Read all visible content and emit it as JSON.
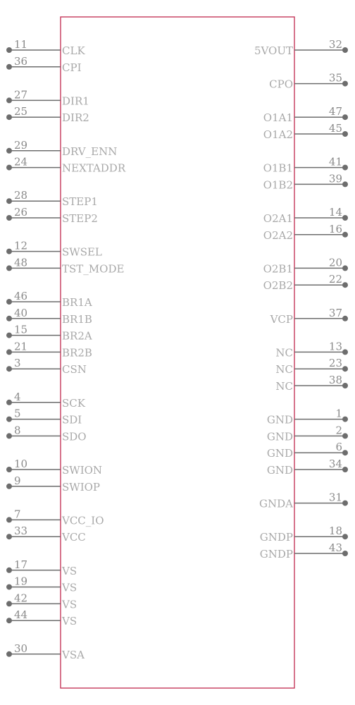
{
  "component": {
    "left_pins": [
      {
        "num": "11",
        "name": "CLK"
      },
      {
        "num": "36",
        "name": "CPI"
      },
      null,
      {
        "num": "27",
        "name": "DIR1"
      },
      {
        "num": "25",
        "name": "DIR2"
      },
      null,
      {
        "num": "29",
        "name": "DRV_ENN"
      },
      {
        "num": "24",
        "name": "NEXTADDR"
      },
      null,
      {
        "num": "28",
        "name": "STEP1"
      },
      {
        "num": "26",
        "name": "STEP2"
      },
      null,
      {
        "num": "12",
        "name": "SWSEL"
      },
      {
        "num": "48",
        "name": "TST_MODE"
      },
      null,
      {
        "num": "46",
        "name": "BR1A"
      },
      {
        "num": "40",
        "name": "BR1B"
      },
      {
        "num": "15",
        "name": "BR2A"
      },
      {
        "num": "21",
        "name": "BR2B"
      },
      {
        "num": "3",
        "name": "CSN"
      },
      null,
      {
        "num": "4",
        "name": "SCK"
      },
      {
        "num": "5",
        "name": "SDI"
      },
      {
        "num": "8",
        "name": "SDO"
      },
      null,
      {
        "num": "10",
        "name": "SWION"
      },
      {
        "num": "9",
        "name": "SWIOP"
      },
      null,
      {
        "num": "7",
        "name": "VCC_IO"
      },
      {
        "num": "33",
        "name": "VCC"
      },
      null,
      {
        "num": "17",
        "name": "VS"
      },
      {
        "num": "19",
        "name": "VS"
      },
      {
        "num": "42",
        "name": "VS"
      },
      {
        "num": "44",
        "name": "VS"
      },
      null,
      {
        "num": "30",
        "name": "VSA"
      }
    ],
    "right_pins": [
      {
        "num": "32",
        "name": "5VOUT"
      },
      null,
      {
        "num": "35",
        "name": "CPO"
      },
      null,
      {
        "num": "47",
        "name": "O1A1"
      },
      {
        "num": "45",
        "name": "O1A2"
      },
      null,
      {
        "num": "41",
        "name": "O1B1"
      },
      {
        "num": "39",
        "name": "O1B2"
      },
      null,
      {
        "num": "14",
        "name": "O2A1"
      },
      {
        "num": "16",
        "name": "O2A2"
      },
      null,
      {
        "num": "20",
        "name": "O2B1"
      },
      {
        "num": "22",
        "name": "O2B2"
      },
      null,
      {
        "num": "37",
        "name": "VCP"
      },
      null,
      {
        "num": "13",
        "name": "NC"
      },
      {
        "num": "23",
        "name": "NC"
      },
      {
        "num": "38",
        "name": "NC"
      },
      null,
      {
        "num": "1",
        "name": "GND"
      },
      {
        "num": "2",
        "name": "GND"
      },
      {
        "num": "6",
        "name": "GND"
      },
      {
        "num": "34",
        "name": "GND"
      },
      null,
      {
        "num": "31",
        "name": "GNDA"
      },
      null,
      {
        "num": "18",
        "name": "GNDP"
      },
      {
        "num": "43",
        "name": "GNDP"
      }
    ]
  }
}
